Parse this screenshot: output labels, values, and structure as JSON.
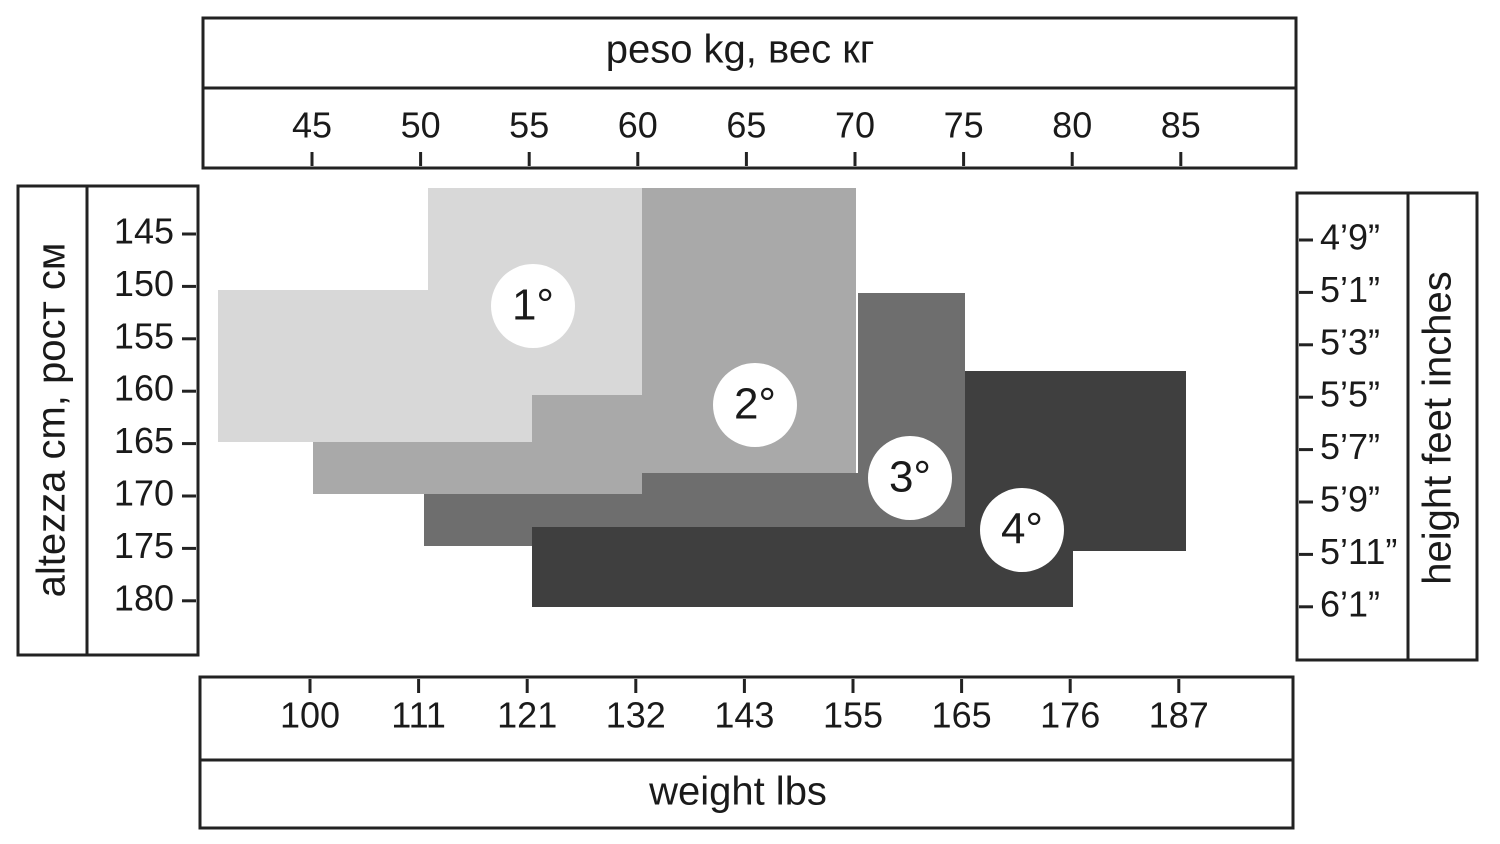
{
  "top_axis": {
    "title": "peso kg, вес кг",
    "ticks": [
      45,
      50,
      55,
      60,
      65,
      70,
      75,
      80,
      85
    ]
  },
  "bottom_axis": {
    "title": "weight lbs",
    "ticks": [
      100,
      111,
      121,
      132,
      143,
      155,
      165,
      176,
      187
    ]
  },
  "left_axis": {
    "title": "altezza cm, рост см",
    "ticks": [
      145,
      150,
      155,
      160,
      165,
      170,
      175,
      180
    ]
  },
  "right_axis": {
    "title": "height feet inches",
    "ticks": [
      "4’9”",
      "5’1”",
      "5’3”",
      "5’5”",
      "5’7”",
      "5’9”",
      "5’11”",
      "6’1”"
    ]
  },
  "sizes": [
    "1°",
    "2°",
    "3°",
    "4°"
  ]
}
